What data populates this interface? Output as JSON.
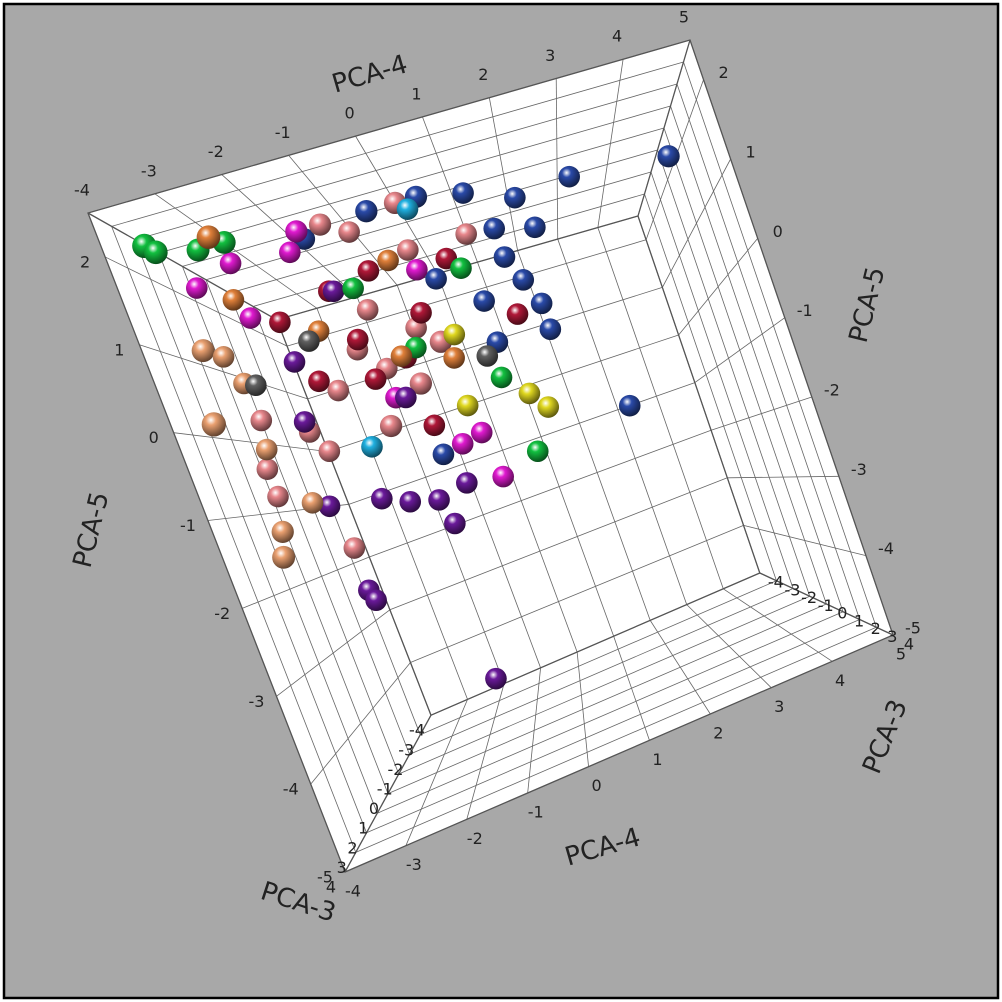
{
  "chart_data": {
    "type": "scatter3d",
    "xlabel": "PCA-4",
    "ylabel": "PCA-5",
    "zlabel": "PCA-3",
    "xlim": [
      -4,
      5
    ],
    "ylim": [
      -5,
      2.5
    ],
    "zlim": [
      -4,
      4
    ],
    "xticks": [
      -4,
      -3,
      -2,
      -1,
      0,
      1,
      2,
      3,
      4,
      5
    ],
    "yticks": [
      -5,
      -4,
      -3,
      -2,
      -1,
      0,
      1,
      2
    ],
    "zticks": [
      -4,
      -3,
      -2,
      -1,
      0,
      1,
      2,
      3,
      4
    ],
    "grid": true,
    "series": [
      {
        "color": "#2a4aa8",
        "x": [
          0.4,
          3.1,
          4.8,
          1.2,
          -0.5,
          2.05,
          1.51,
          2.21,
          1.51,
          0.89,
          1.86,
          1.85,
          0.86,
          2.75,
          0.21,
          1.69,
          -1.77,
          -0.78
        ],
        "y": [
          2.4,
          2.2,
          1.95,
          2.4,
          2.4,
          2.13,
          1.79,
          1.64,
          1.36,
          0.85,
          0.57,
          0.18,
          0.24,
          -1.23,
          1.35,
          0.97,
          2.4,
          -1.0
        ],
        "z": [
          0.5,
          0,
          0.5,
          0,
          0.5,
          0,
          0,
          0,
          0,
          0,
          0,
          0,
          0,
          0,
          0,
          0,
          0,
          0
        ]
      },
      {
        "color": "#e8878c",
        "x": [
          -1.34,
          0.02,
          -0.97,
          -0.09,
          -1.15,
          -0.44,
          -1.2,
          -2.17,
          -2.93,
          -2.72,
          -3.68,
          -3.9,
          -3.9,
          -2.93,
          1.0,
          -0.07,
          -1.42,
          -0.66,
          -1.58
        ],
        "y": [
          2.4,
          2.4,
          2.32,
          1.85,
          1.22,
          0.78,
          0.37,
          0.29,
          -0.12,
          -0.45,
          0.23,
          -0.41,
          -0.8,
          -1.79,
          1.83,
          0.42,
          -0.44,
          -0.03,
          0.74
        ],
        "z": [
          0.5,
          0.5,
          0,
          0,
          0,
          0,
          0,
          0,
          0,
          0,
          0,
          0,
          0,
          0,
          0,
          0.5,
          0.5,
          0.5,
          0
        ]
      },
      {
        "color": "#e01ad0",
        "x": [
          -1.77,
          -3.9,
          -3.17,
          -3.19,
          -2.1,
          -0.06,
          -0.38,
          0.11,
          0.02,
          -1.23
        ],
        "y": [
          2.4,
          2.17,
          2.36,
          1.58,
          2.28,
          1.55,
          -0.95,
          -1.57,
          -0.89,
          -0.05
        ],
        "z": [
          0.5,
          0,
          0,
          0,
          0,
          0,
          0,
          0,
          0,
          0
        ]
      },
      {
        "color": "#b01838",
        "x": [
          -2.72,
          -1.69,
          -1.51,
          -0.26,
          0.51,
          1.38,
          -2.44,
          -1.46,
          -0.8,
          -0.89,
          -0.75
        ],
        "y": [
          1.41,
          1.62,
          0.87,
          0.96,
          1.58,
          0.53,
          0.49,
          0.28,
          0.43,
          1.73,
          -0.58
        ],
        "z": [
          0,
          0,
          0,
          0,
          0,
          0,
          0,
          0,
          0,
          0,
          0
        ]
      },
      {
        "color": "#6a1a9a",
        "x": [
          -1.33,
          -2.96,
          -2.9,
          -3.08,
          -2.13,
          -1.66,
          -1.15,
          -1.03,
          -0.56,
          -1.61,
          -2.73,
          -2.95,
          -1.06
        ],
        "y": [
          -4.14,
          -2.39,
          -2.55,
          -1.15,
          -1.29,
          -1.46,
          -1.57,
          -1.95,
          -1.48,
          1.6,
          0.84,
          0.03,
          -0.09
        ],
        "z": [
          0,
          0,
          0,
          0,
          0,
          0,
          0,
          0,
          0,
          0,
          0,
          0,
          0
        ]
      },
      {
        "color": "#12c040",
        "x": [
          -3.9,
          -3.9,
          -2.9,
          -3.36,
          -1.26,
          0.87,
          0.71,
          0.7,
          -0.57
        ],
        "y": [
          2.4,
          2.4,
          2.4,
          2.4,
          1.56,
          -1.4,
          -0.25,
          1.39,
          0.52
        ],
        "z": [
          2,
          1.5,
          1,
          1,
          0,
          0,
          0,
          0,
          0
        ]
      },
      {
        "color": "#e0803a",
        "x": [
          -3.0,
          -3.36,
          -2.12,
          -0.87,
          0.02,
          -0.49
        ],
        "y": [
          2.4,
          1.88,
          1.14,
          0.47,
          0.22,
          1.79
        ],
        "z": [
          1.5,
          0,
          0,
          0,
          0,
          0
        ]
      },
      {
        "color": "#eaa070",
        "x": [
          -3.9,
          -3.9,
          -3.9,
          -3.73,
          -3.78,
          -3.9,
          -3.9,
          -3.35
        ],
        "y": [
          1.17,
          1.19,
          0.14,
          0.77,
          -0.16,
          -1.28,
          -1.6,
          -1.03
        ],
        "z": [
          1,
          0,
          2,
          0,
          0,
          0.5,
          1,
          0
        ]
      },
      {
        "color": "#e0d820",
        "x": [
          1.09,
          1.33,
          -0.05,
          0.17
        ],
        "y": [
          -0.59,
          -0.86,
          -0.47,
          0.53
        ],
        "z": [
          0,
          0,
          0,
          0
        ]
      },
      {
        "color": "#606060",
        "x": [
          -3.54,
          0.6,
          -2.35
        ],
        "y": [
          0.7,
          0.1,
          1.05
        ],
        "z": [
          0,
          0,
          0
        ]
      },
      {
        "color": "#20b0e0",
        "x": [
          0.16,
          -1.96
        ],
        "y": [
          2.4,
          -0.58
        ],
        "z": [
          0,
          0
        ]
      }
    ]
  }
}
